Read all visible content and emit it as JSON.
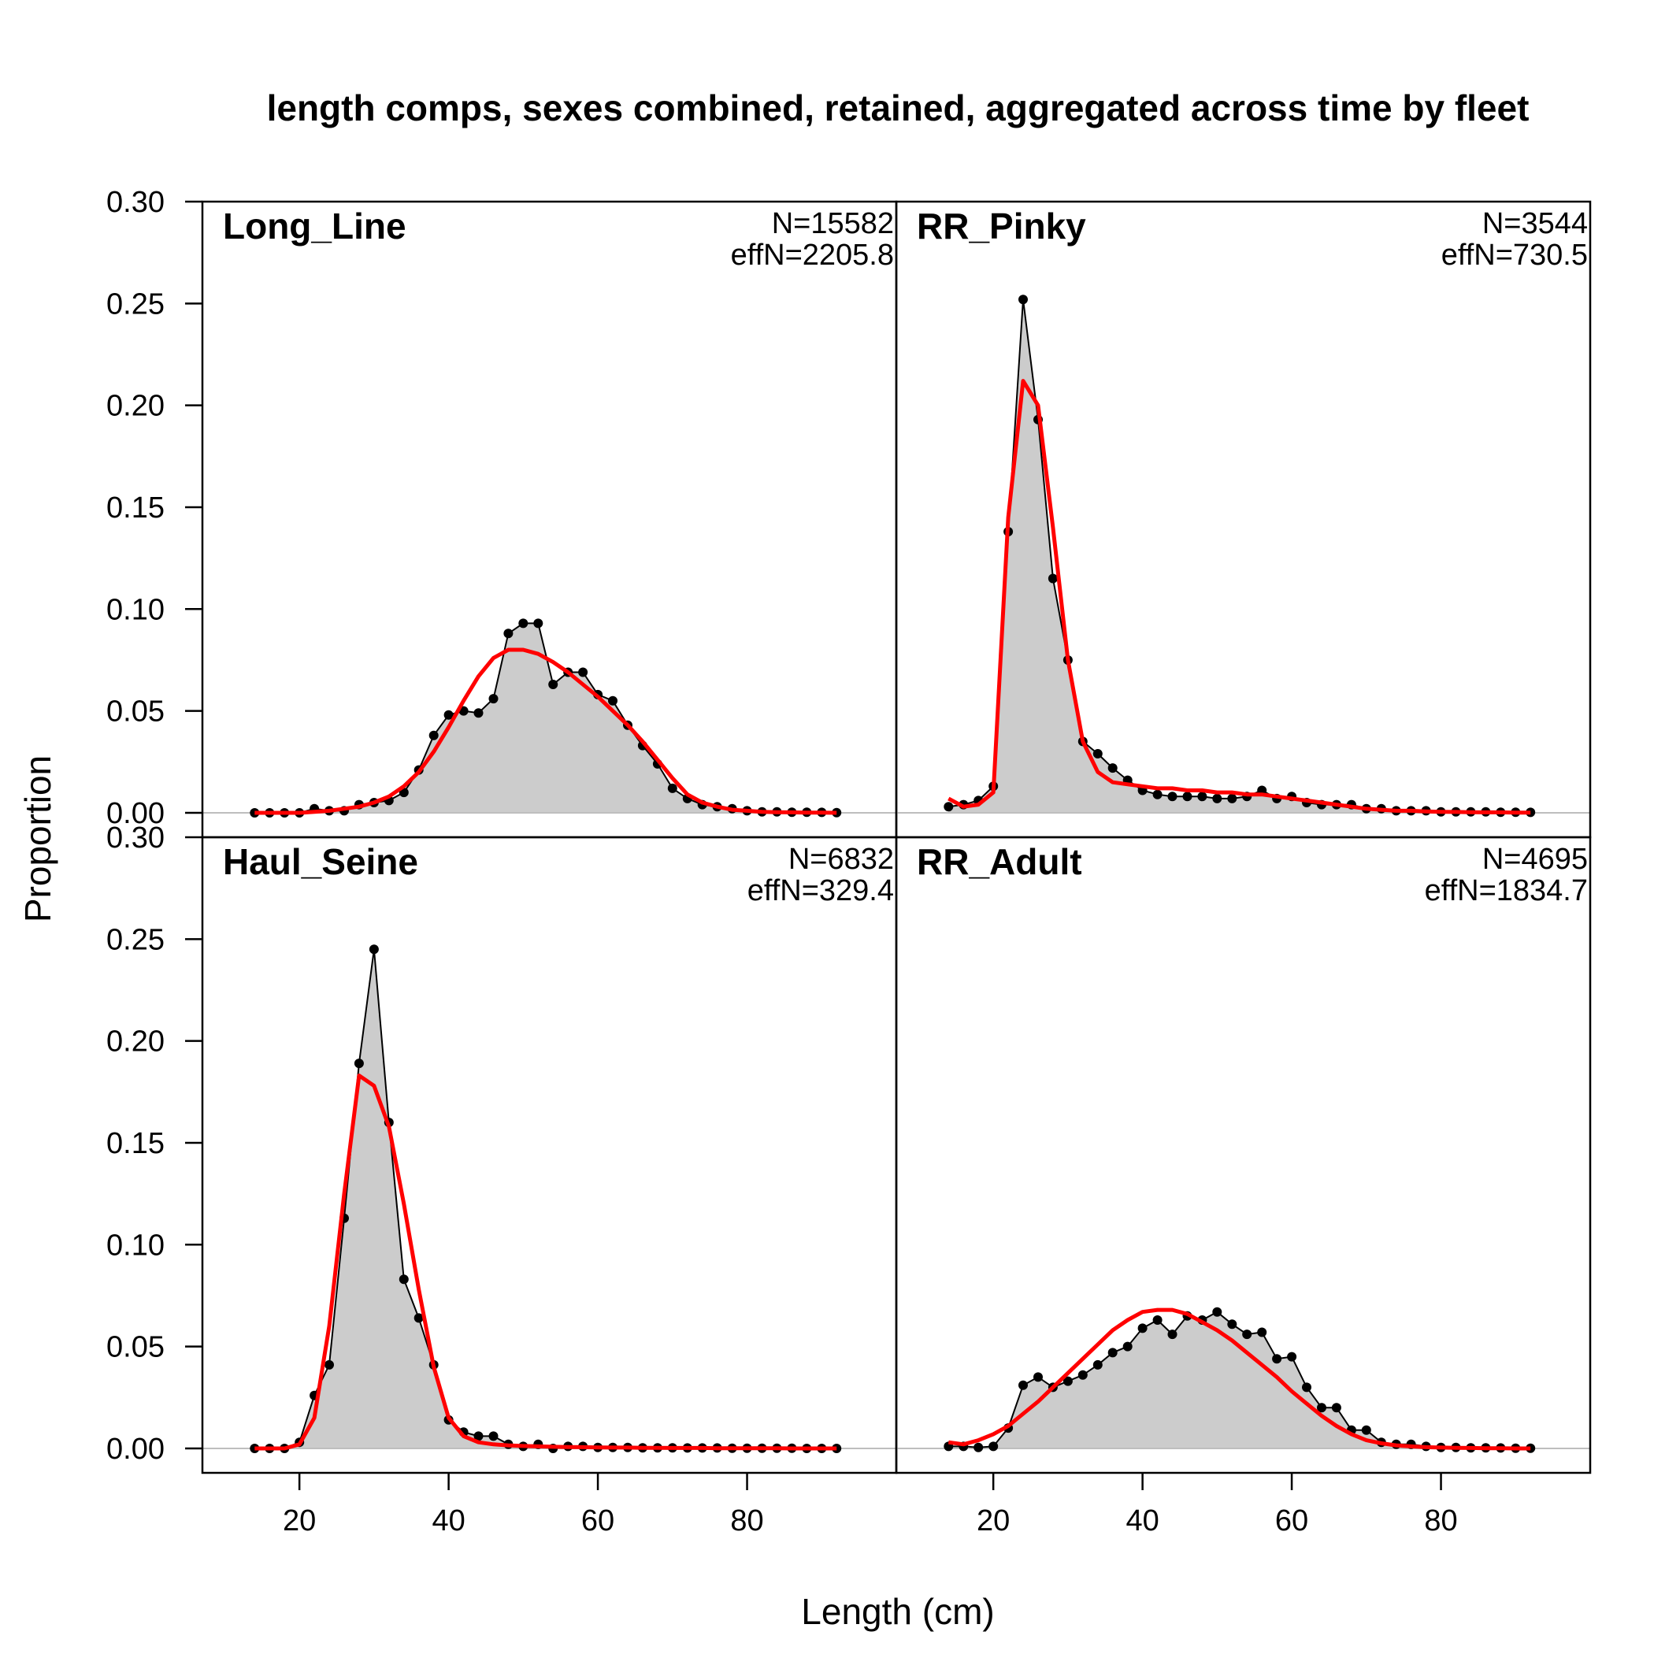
{
  "chart_data": {
    "type": "area",
    "title": "length comps, sexes combined, retained, aggregated across time by fleet",
    "xlabel": "Length (cm)",
    "ylabel": "Proportion",
    "xlim": [
      7,
      100
    ],
    "ylim": [
      -0.012,
      0.3
    ],
    "x_ticks": [
      20,
      40,
      60,
      80
    ],
    "y_ticks": [
      "0.00",
      "0.05",
      "0.10",
      "0.15",
      "0.20",
      "0.25",
      "0.30"
    ],
    "grid": false,
    "colors": {
      "observed_fill": "#cccccc",
      "observed_line": "#000000",
      "expected_line": "#ff0000",
      "zero_line": "#bebebe"
    },
    "panels": [
      {
        "name": "Long_Line",
        "n_label": "N=15582",
        "effn_label": "effN=2205.8",
        "x": [
          14,
          16,
          18,
          20,
          22,
          24,
          26,
          28,
          30,
          32,
          34,
          36,
          38,
          40,
          42,
          44,
          46,
          48,
          50,
          52,
          54,
          56,
          58,
          60,
          62,
          64,
          66,
          68,
          70,
          72,
          74,
          76,
          78,
          80,
          82,
          84,
          86,
          88,
          90,
          92
        ],
        "observed": [
          0,
          0,
          0,
          0,
          0.002,
          0.001,
          0.001,
          0.004,
          0.005,
          0.006,
          0.01,
          0.021,
          0.038,
          0.048,
          0.05,
          0.049,
          0.056,
          0.088,
          0.093,
          0.093,
          0.063,
          0.069,
          0.069,
          0.058,
          0.055,
          0.043,
          0.033,
          0.024,
          0.012,
          0.007,
          0.004,
          0.003,
          0.002,
          0.001,
          0.0005,
          0.0005,
          0.0003,
          0.0003,
          0.0002,
          0.0001
        ],
        "expected": [
          0,
          0,
          0,
          0,
          0.0005,
          0.001,
          0.002,
          0.003,
          0.005,
          0.008,
          0.013,
          0.02,
          0.03,
          0.042,
          0.055,
          0.067,
          0.076,
          0.08,
          0.08,
          0.078,
          0.074,
          0.069,
          0.063,
          0.057,
          0.05,
          0.043,
          0.035,
          0.026,
          0.017,
          0.009,
          0.005,
          0.003,
          0.0015,
          0.001,
          0.0005,
          0.0003,
          0.0002,
          0.0001,
          0.0001,
          0
        ],
        "y_tick_labels": [
          "0.00",
          "0.05",
          "0.10",
          "0.15",
          "0.20",
          "0.25",
          "0.30"
        ]
      },
      {
        "name": "RR_Pinky",
        "n_label": "N=3544",
        "effn_label": "effN=730.5",
        "x": [
          14,
          16,
          18,
          20,
          22,
          24,
          26,
          28,
          30,
          32,
          34,
          36,
          38,
          40,
          42,
          44,
          46,
          48,
          50,
          52,
          54,
          56,
          58,
          60,
          62,
          64,
          66,
          68,
          70,
          72,
          74,
          76,
          78,
          80,
          82,
          84,
          86,
          88,
          90,
          92
        ],
        "observed": [
          0.003,
          0.004,
          0.006,
          0.013,
          0.138,
          0.252,
          0.193,
          0.115,
          0.075,
          0.035,
          0.029,
          0.022,
          0.016,
          0.011,
          0.009,
          0.008,
          0.008,
          0.008,
          0.007,
          0.007,
          0.008,
          0.011,
          0.007,
          0.008,
          0.005,
          0.004,
          0.004,
          0.004,
          0.002,
          0.002,
          0.001,
          0.001,
          0.001,
          0.0005,
          0.0005,
          0.0005,
          0.0005,
          0.0003,
          0.0003,
          0.0002
        ],
        "expected": [
          0.007,
          0.003,
          0.004,
          0.01,
          0.145,
          0.212,
          0.2,
          0.14,
          0.075,
          0.035,
          0.02,
          0.015,
          0.014,
          0.013,
          0.012,
          0.012,
          0.011,
          0.011,
          0.01,
          0.01,
          0.009,
          0.009,
          0.008,
          0.007,
          0.006,
          0.005,
          0.004,
          0.003,
          0.002,
          0.0015,
          0.001,
          0.001,
          0.0007,
          0.0005,
          0.0004,
          0.0003,
          0.0002,
          0.0002,
          0.0001,
          0.0001
        ],
        "y_tick_labels": []
      },
      {
        "name": "Haul_Seine",
        "n_label": "N=6832",
        "effn_label": "effN=329.4",
        "x": [
          14,
          16,
          18,
          20,
          22,
          24,
          26,
          28,
          30,
          32,
          34,
          36,
          38,
          40,
          42,
          44,
          46,
          48,
          50,
          52,
          54,
          56,
          58,
          60,
          62,
          64,
          66,
          68,
          70,
          72,
          74,
          76,
          78,
          80,
          82,
          84,
          86,
          88,
          90,
          92
        ],
        "observed": [
          0,
          0,
          0,
          0.003,
          0.026,
          0.041,
          0.113,
          0.189,
          0.245,
          0.16,
          0.083,
          0.064,
          0.041,
          0.014,
          0.008,
          0.006,
          0.006,
          0.002,
          0.001,
          0.002,
          0,
          0.001,
          0.001,
          0.0005,
          0.0005,
          0.0005,
          0.0003,
          0.0003,
          0.0003,
          0.0002,
          0.0002,
          0.0002,
          0.0001,
          0.0001,
          0.0001,
          0.0001,
          0.0001,
          0,
          0,
          0
        ],
        "expected": [
          0,
          0,
          0,
          0.002,
          0.015,
          0.06,
          0.125,
          0.183,
          0.178,
          0.158,
          0.12,
          0.078,
          0.04,
          0.015,
          0.006,
          0.003,
          0.002,
          0.0015,
          0.0012,
          0.001,
          0.0008,
          0.0007,
          0.0006,
          0.0005,
          0.0004,
          0.0004,
          0.0003,
          0.0003,
          0.0002,
          0.0002,
          0.0002,
          0.0001,
          0.0001,
          0.0001,
          0.0001,
          0.0001,
          0,
          0,
          0,
          0
        ],
        "y_tick_labels": [
          "0.00",
          "0.05",
          "0.10",
          "0.15",
          "0.20",
          "0.25",
          "0.30"
        ]
      },
      {
        "name": "RR_Adult",
        "n_label": "N=4695",
        "effn_label": "effN=1834.7",
        "x": [
          14,
          16,
          18,
          20,
          22,
          24,
          26,
          28,
          30,
          32,
          34,
          36,
          38,
          40,
          42,
          44,
          46,
          48,
          50,
          52,
          54,
          56,
          58,
          60,
          62,
          64,
          66,
          68,
          70,
          72,
          74,
          76,
          78,
          80,
          82,
          84,
          86,
          88,
          90,
          92
        ],
        "observed": [
          0.001,
          0.001,
          0.0005,
          0.001,
          0.01,
          0.031,
          0.035,
          0.03,
          0.033,
          0.036,
          0.041,
          0.047,
          0.05,
          0.059,
          0.063,
          0.056,
          0.065,
          0.063,
          0.067,
          0.061,
          0.056,
          0.057,
          0.044,
          0.045,
          0.03,
          0.02,
          0.02,
          0.009,
          0.009,
          0.003,
          0.002,
          0.002,
          0.001,
          0.0005,
          0.0005,
          0.0003,
          0.0003,
          0.0002,
          0.0001,
          0.0001
        ],
        "expected": [
          0.003,
          0.002,
          0.004,
          0.007,
          0.011,
          0.017,
          0.023,
          0.03,
          0.037,
          0.044,
          0.051,
          0.058,
          0.063,
          0.067,
          0.068,
          0.068,
          0.066,
          0.062,
          0.058,
          0.053,
          0.047,
          0.041,
          0.035,
          0.028,
          0.022,
          0.016,
          0.011,
          0.007,
          0.004,
          0.0025,
          0.0015,
          0.001,
          0.0006,
          0.0004,
          0.0003,
          0.0002,
          0.0001,
          0.0001,
          0,
          0
        ],
        "y_tick_labels": []
      }
    ]
  }
}
